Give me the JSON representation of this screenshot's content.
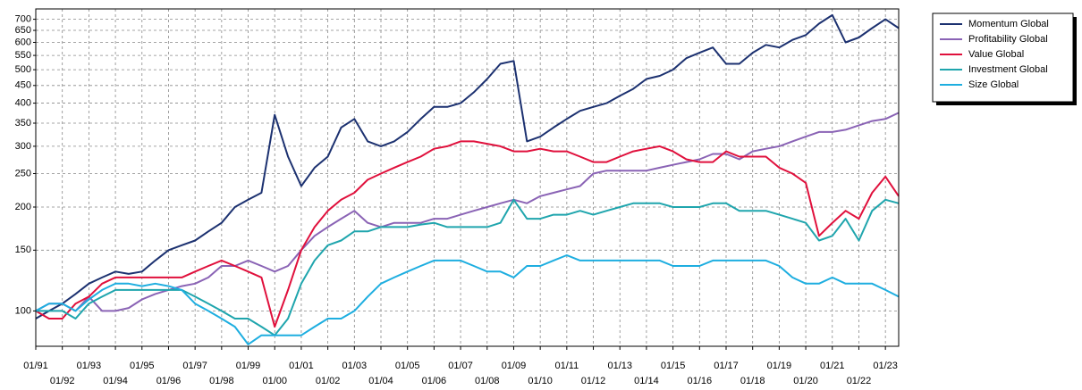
{
  "chart_data": {
    "type": "line",
    "x": [
      "01/91",
      "07/91",
      "01/92",
      "07/92",
      "01/93",
      "07/93",
      "01/94",
      "07/94",
      "01/95",
      "07/95",
      "01/96",
      "07/96",
      "01/97",
      "07/97",
      "01/98",
      "07/98",
      "01/99",
      "07/99",
      "01/00",
      "07/00",
      "01/01",
      "07/01",
      "01/02",
      "07/02",
      "01/03",
      "07/03",
      "01/04",
      "07/04",
      "01/05",
      "07/05",
      "01/06",
      "07/06",
      "01/07",
      "07/07",
      "01/08",
      "07/08",
      "01/09",
      "07/09",
      "01/10",
      "07/10",
      "01/11",
      "07/11",
      "01/12",
      "07/12",
      "01/13",
      "07/13",
      "01/14",
      "07/14",
      "01/15",
      "07/15",
      "01/16",
      "07/16",
      "01/17",
      "07/17",
      "01/18",
      "07/18",
      "01/19",
      "07/19",
      "01/20",
      "07/20",
      "01/21",
      "07/21",
      "01/22",
      "07/22",
      "01/23",
      "07/23"
    ],
    "series": [
      {
        "name": "Momentum Global",
        "color": "#1c3170",
        "values": [
          95,
          100,
          105,
          112,
          120,
          125,
          130,
          128,
          130,
          140,
          150,
          155,
          160,
          170,
          180,
          200,
          210,
          220,
          370,
          280,
          230,
          260,
          280,
          340,
          360,
          310,
          300,
          310,
          330,
          360,
          390,
          390,
          400,
          430,
          470,
          520,
          530,
          310,
          320,
          340,
          360,
          380,
          390,
          400,
          420,
          440,
          470,
          480,
          500,
          540,
          560,
          580,
          520,
          520,
          560,
          590,
          580,
          610,
          630,
          680,
          720,
          600,
          620,
          660,
          700,
          660
        ]
      },
      {
        "name": "Profitability Global",
        "color": "#8a63b5",
        "values": [
          100,
          105,
          105,
          100,
          110,
          100,
          100,
          102,
          108,
          112,
          115,
          118,
          120,
          125,
          135,
          135,
          140,
          135,
          130,
          135,
          150,
          165,
          175,
          185,
          195,
          180,
          175,
          180,
          180,
          180,
          185,
          185,
          190,
          195,
          200,
          205,
          210,
          205,
          215,
          220,
          225,
          230,
          250,
          255,
          255,
          255,
          255,
          260,
          265,
          270,
          275,
          285,
          285,
          275,
          290,
          295,
          300,
          310,
          320,
          330,
          330,
          335,
          345,
          355,
          360,
          375
        ]
      },
      {
        "name": "Value Global",
        "color": "#e0103c",
        "values": [
          100,
          95,
          95,
          105,
          110,
          120,
          125,
          125,
          125,
          125,
          125,
          125,
          130,
          135,
          140,
          135,
          130,
          125,
          90,
          115,
          150,
          175,
          195,
          210,
          220,
          240,
          250,
          260,
          270,
          280,
          295,
          300,
          310,
          310,
          305,
          300,
          290,
          290,
          295,
          290,
          290,
          280,
          270,
          270,
          280,
          290,
          295,
          300,
          290,
          275,
          270,
          270,
          290,
          280,
          280,
          280,
          260,
          250,
          235,
          165,
          180,
          195,
          185,
          220,
          245,
          215
        ]
      },
      {
        "name": "Investment Global",
        "color": "#1fa5ad",
        "values": [
          100,
          100,
          100,
          95,
          105,
          110,
          115,
          115,
          115,
          115,
          115,
          115,
          110,
          105,
          100,
          95,
          95,
          90,
          85,
          95,
          120,
          140,
          155,
          160,
          170,
          170,
          175,
          175,
          175,
          178,
          180,
          175,
          175,
          175,
          175,
          180,
          210,
          185,
          185,
          190,
          190,
          195,
          190,
          195,
          200,
          205,
          205,
          205,
          200,
          200,
          200,
          205,
          205,
          195,
          195,
          195,
          190,
          185,
          180,
          160,
          165,
          185,
          160,
          195,
          210,
          205
        ]
      },
      {
        "name": "Size Global",
        "color": "#1eaee0",
        "values": [
          100,
          105,
          105,
          100,
          108,
          115,
          120,
          120,
          118,
          120,
          118,
          115,
          105,
          100,
          95,
          90,
          80,
          85,
          85,
          85,
          85,
          90,
          95,
          95,
          100,
          110,
          120,
          125,
          130,
          135,
          140,
          140,
          140,
          135,
          130,
          130,
          125,
          135,
          135,
          140,
          145,
          140,
          140,
          140,
          140,
          140,
          140,
          140,
          135,
          135,
          135,
          140,
          140,
          140,
          140,
          140,
          135,
          125,
          120,
          120,
          125,
          120,
          120,
          120,
          115,
          110
        ]
      }
    ],
    "xlim": [
      "01/91",
      "07/23"
    ],
    "xticks": [
      "01/91",
      "01/92",
      "01/93",
      "01/94",
      "01/95",
      "01/96",
      "01/97",
      "01/98",
      "01/99",
      "01/00",
      "01/01",
      "01/02",
      "01/03",
      "01/04",
      "01/05",
      "01/06",
      "01/07",
      "01/08",
      "01/09",
      "01/10",
      "01/11",
      "01/12",
      "01/13",
      "01/14",
      "01/15",
      "01/16",
      "01/17",
      "01/18",
      "01/19",
      "01/20",
      "01/21",
      "01/22",
      "01/23"
    ],
    "ylim": [
      79,
      750
    ],
    "log": true,
    "yticks": [
      100,
      150,
      200,
      250,
      300,
      350,
      400,
      450,
      500,
      550,
      600,
      650,
      700
    ],
    "grid": true,
    "legend": "upper-right"
  }
}
